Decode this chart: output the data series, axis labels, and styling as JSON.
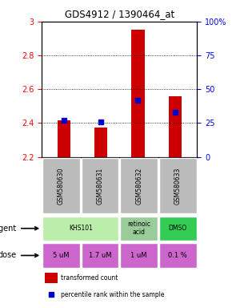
{
  "title": "GDS4912 / 1390464_at",
  "samples": [
    "GSM580630",
    "GSM580631",
    "GSM580632",
    "GSM580633"
  ],
  "bar_bottoms": [
    2.2,
    2.2,
    2.2,
    2.2
  ],
  "bar_tops": [
    2.415,
    2.375,
    2.95,
    2.56
  ],
  "percentile_values": [
    2.415,
    2.408,
    2.535,
    2.465
  ],
  "ylim": [
    2.2,
    3.0
  ],
  "yticks_left": [
    2.2,
    2.4,
    2.6,
    2.8,
    3.0
  ],
  "yticks_right_vals": [
    0,
    25,
    50,
    75,
    100
  ],
  "ytick_labels_left": [
    "2.2",
    "2.4",
    "2.6",
    "2.8",
    "3"
  ],
  "ytick_labels_right": [
    "0",
    "25",
    "50",
    "75",
    "100%"
  ],
  "gridlines": [
    2.4,
    2.6,
    2.8
  ],
  "bar_color": "#cc0000",
  "percentile_color": "#0000cc",
  "sample_bg_color": "#bbbbbb",
  "agent_spans": [
    [
      0,
      2,
      "#bbeeaa",
      "KHS101"
    ],
    [
      2,
      3,
      "#99cc99",
      "retinoic\nacid"
    ],
    [
      3,
      4,
      "#33cc55",
      "DMSO"
    ]
  ],
  "dose_labels": [
    "5 uM",
    "1.7 uM",
    "1 uM",
    "0.1 %"
  ],
  "dose_color": "#cc66cc",
  "legend_bar_color": "#cc0000",
  "legend_dot_color": "#0000cc",
  "legend_text1": "transformed count",
  "legend_text2": "percentile rank within the sample"
}
